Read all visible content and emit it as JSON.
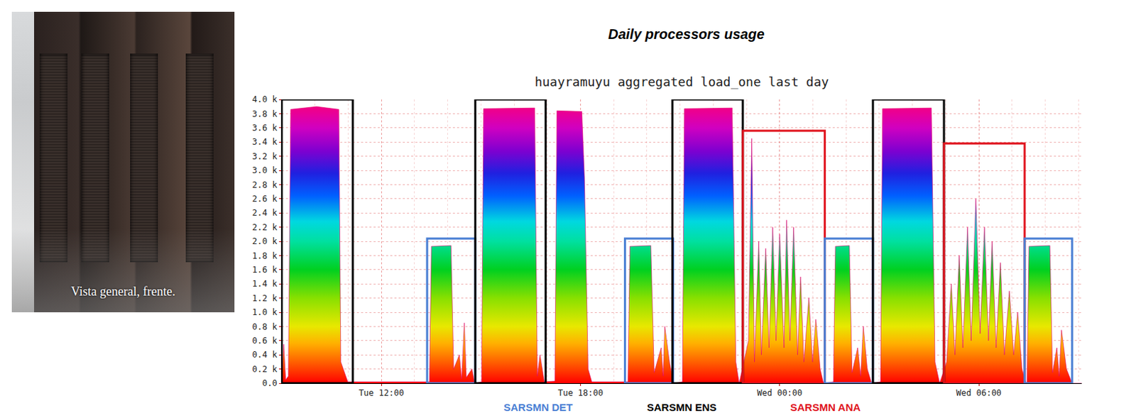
{
  "heading": "Daily processors usage",
  "photo": {
    "caption": "Vista general, frente."
  },
  "chart_data": {
    "type": "area",
    "title": "huayramuyu aggregated load_one last day",
    "x": [
      9.0,
      9.06,
      9.12,
      9.2,
      9.27,
      10.05,
      10.72,
      10.78,
      10.99,
      13.45,
      13.51,
      14.1,
      14.18,
      14.35,
      14.42,
      14.5,
      14.56,
      14.73,
      14.81,
      15.02,
      15.08,
      16.62,
      16.7,
      16.78,
      16.91,
      17.23,
      17.29,
      18.04,
      18.12,
      18.23,
      18.34,
      19.43,
      19.49,
      20.12,
      20.22,
      20.43,
      20.49,
      20.54,
      20.68,
      20.81,
      21.07,
      21.13,
      22.57,
      22.68,
      22.78,
      23.06,
      23.16,
      23.24,
      23.37,
      23.45,
      23.58,
      23.68,
      23.79,
      23.89,
      24.0,
      24.13,
      24.21,
      24.31,
      24.42,
      24.54,
      24.63,
      24.73,
      24.88,
      24.99,
      25.09,
      25.22,
      25.32,
      25.62,
      25.68,
      26.1,
      26.18,
      26.35,
      26.44,
      26.52,
      26.64,
      26.77,
      27.04,
      27.1,
      28.57,
      28.68,
      28.82,
      29.03,
      29.17,
      29.28,
      29.41,
      29.52,
      29.66,
      29.77,
      29.91,
      30.04,
      30.17,
      30.29,
      30.4,
      30.52,
      30.65,
      30.77,
      30.92,
      31.05,
      31.17,
      31.3,
      31.42,
      31.45,
      31.51,
      32.14,
      32.22,
      32.35,
      32.42,
      32.49,
      32.64,
      32.81,
      33.1
    ],
    "values": [
      0,
      550,
      50,
      100,
      3860,
      3900,
      3860,
      300,
      20,
      20,
      1930,
      1940,
      200,
      400,
      60,
      850,
      80,
      200,
      0,
      20,
      3870,
      3880,
      100,
      400,
      20,
      30,
      3840,
      3830,
      2900,
      200,
      20,
      20,
      1930,
      1940,
      150,
      500,
      100,
      800,
      300,
      0,
      20,
      3870,
      3880,
      300,
      0,
      600,
      3450,
      300,
      2000,
      400,
      1900,
      500,
      2200,
      600,
      2100,
      500,
      2300,
      600,
      2200,
      400,
      1500,
      300,
      1200,
      300,
      900,
      200,
      0,
      20,
      1930,
      1940,
      150,
      500,
      100,
      800,
      200,
      0,
      20,
      3870,
      3880,
      300,
      0,
      300,
      1400,
      400,
      1800,
      500,
      2200,
      600,
      2600,
      700,
      2200,
      600,
      2000,
      500,
      1700,
      400,
      1300,
      400,
      1000,
      200,
      0,
      20,
      1930,
      1940,
      150,
      500,
      100,
      750,
      200,
      0,
      0
    ],
    "xlim": [
      9.0,
      33.1
    ],
    "xticks": [
      {
        "value": 12,
        "label": "Tue 12:00"
      },
      {
        "value": 18,
        "label": "Tue 18:00"
      },
      {
        "value": 24,
        "label": "Wed 00:00"
      },
      {
        "value": 30,
        "label": "Wed 06:00"
      }
    ],
    "ylim": [
      0,
      4000
    ],
    "yticks": [
      {
        "value": 0,
        "label": "0.0"
      },
      {
        "value": 200,
        "label": "0.2 k"
      },
      {
        "value": 400,
        "label": "0.4 k"
      },
      {
        "value": 600,
        "label": "0.6 k"
      },
      {
        "value": 800,
        "label": "0.8 k"
      },
      {
        "value": 1000,
        "label": "1.0 k"
      },
      {
        "value": 1200,
        "label": "1.2 k"
      },
      {
        "value": 1400,
        "label": "1.4 k"
      },
      {
        "value": 1600,
        "label": "1.6 k"
      },
      {
        "value": 1800,
        "label": "1.8 k"
      },
      {
        "value": 2000,
        "label": "2.0 k"
      },
      {
        "value": 2200,
        "label": "2.2 k"
      },
      {
        "value": 2400,
        "label": "2.4 k"
      },
      {
        "value": 2600,
        "label": "2.6 k"
      },
      {
        "value": 2800,
        "label": "2.8 k"
      },
      {
        "value": 3000,
        "label": "3.0 k"
      },
      {
        "value": 3200,
        "label": "3.2 k"
      },
      {
        "value": 3400,
        "label": "3.4 k"
      },
      {
        "value": 3600,
        "label": "3.6 k"
      },
      {
        "value": 3800,
        "label": "3.8 k"
      },
      {
        "value": 4000,
        "label": "4.0 k"
      }
    ],
    "grid": true,
    "legend": "bottom",
    "groups": [
      {
        "name": "SARSMN DET",
        "color": "#4a7fd4"
      },
      {
        "name": "SARSMN ENS",
        "color": "#000000"
      },
      {
        "name": "SARSMN ANA",
        "color": "#e0141e"
      }
    ],
    "boxes": [
      {
        "group": "SARSMN ENS",
        "x0": 9.0,
        "x1": 11.14,
        "top": 4000
      },
      {
        "group": "SARSMN DET",
        "x0": 13.38,
        "x1": 14.83,
        "top": 2040
      },
      {
        "group": "SARSMN ENS",
        "x0": 14.83,
        "x1": 16.95,
        "top": 4000
      },
      {
        "group": "SARSMN DET",
        "x0": 19.34,
        "x1": 20.79,
        "top": 2040
      },
      {
        "group": "SARSMN ENS",
        "x0": 20.77,
        "x1": 22.89,
        "top": 4000
      },
      {
        "group": "SARSMN ANA",
        "x0": 22.89,
        "x1": 25.36,
        "top": 3560
      },
      {
        "group": "SARSMN DET",
        "x0": 25.36,
        "x1": 26.81,
        "top": 2040
      },
      {
        "group": "SARSMN ENS",
        "x0": 26.81,
        "x1": 28.95,
        "top": 4000
      },
      {
        "group": "SARSMN ANA",
        "x0": 28.95,
        "x1": 31.38,
        "top": 3380
      },
      {
        "group": "SARSMN DET",
        "x0": 31.38,
        "x1": 32.81,
        "top": 2040
      }
    ]
  }
}
